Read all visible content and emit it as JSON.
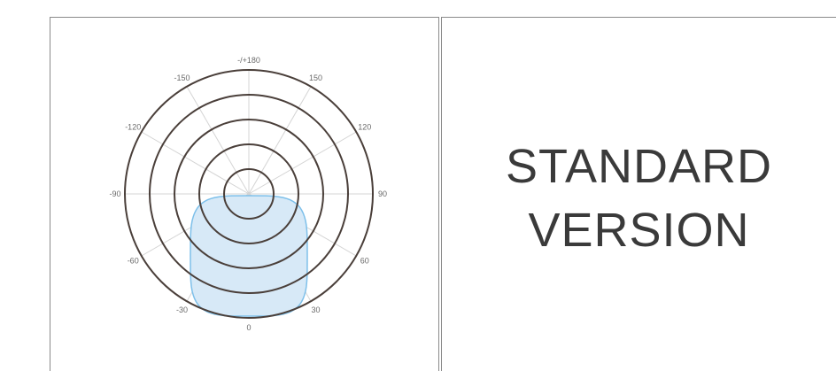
{
  "polar_plot": {
    "angle_labels": [
      {
        "text": "-/+180",
        "deg": 180
      },
      {
        "text": "150",
        "deg": 150
      },
      {
        "text": "120",
        "deg": 120
      },
      {
        "text": "90",
        "deg": 90
      },
      {
        "text": "60",
        "deg": 60
      },
      {
        "text": "30",
        "deg": 30
      },
      {
        "text": "0",
        "deg": 0
      },
      {
        "text": "-30",
        "deg": -30
      },
      {
        "text": "-60",
        "deg": -60
      },
      {
        "text": "-90",
        "deg": -90
      },
      {
        "text": "-120",
        "deg": -120
      },
      {
        "text": "-150",
        "deg": -150
      }
    ],
    "ring_count": 5,
    "spoke_step_deg": 30,
    "pattern": "cardioid pointing toward 0",
    "colors": {
      "rings": "#4a3f3a",
      "spokes": "#d4d4d4",
      "pattern_fill": "#d7e9f7",
      "pattern_stroke": "#7ec0ea"
    }
  },
  "title": {
    "line1": "STANDARD",
    "line2": "VERSION"
  }
}
